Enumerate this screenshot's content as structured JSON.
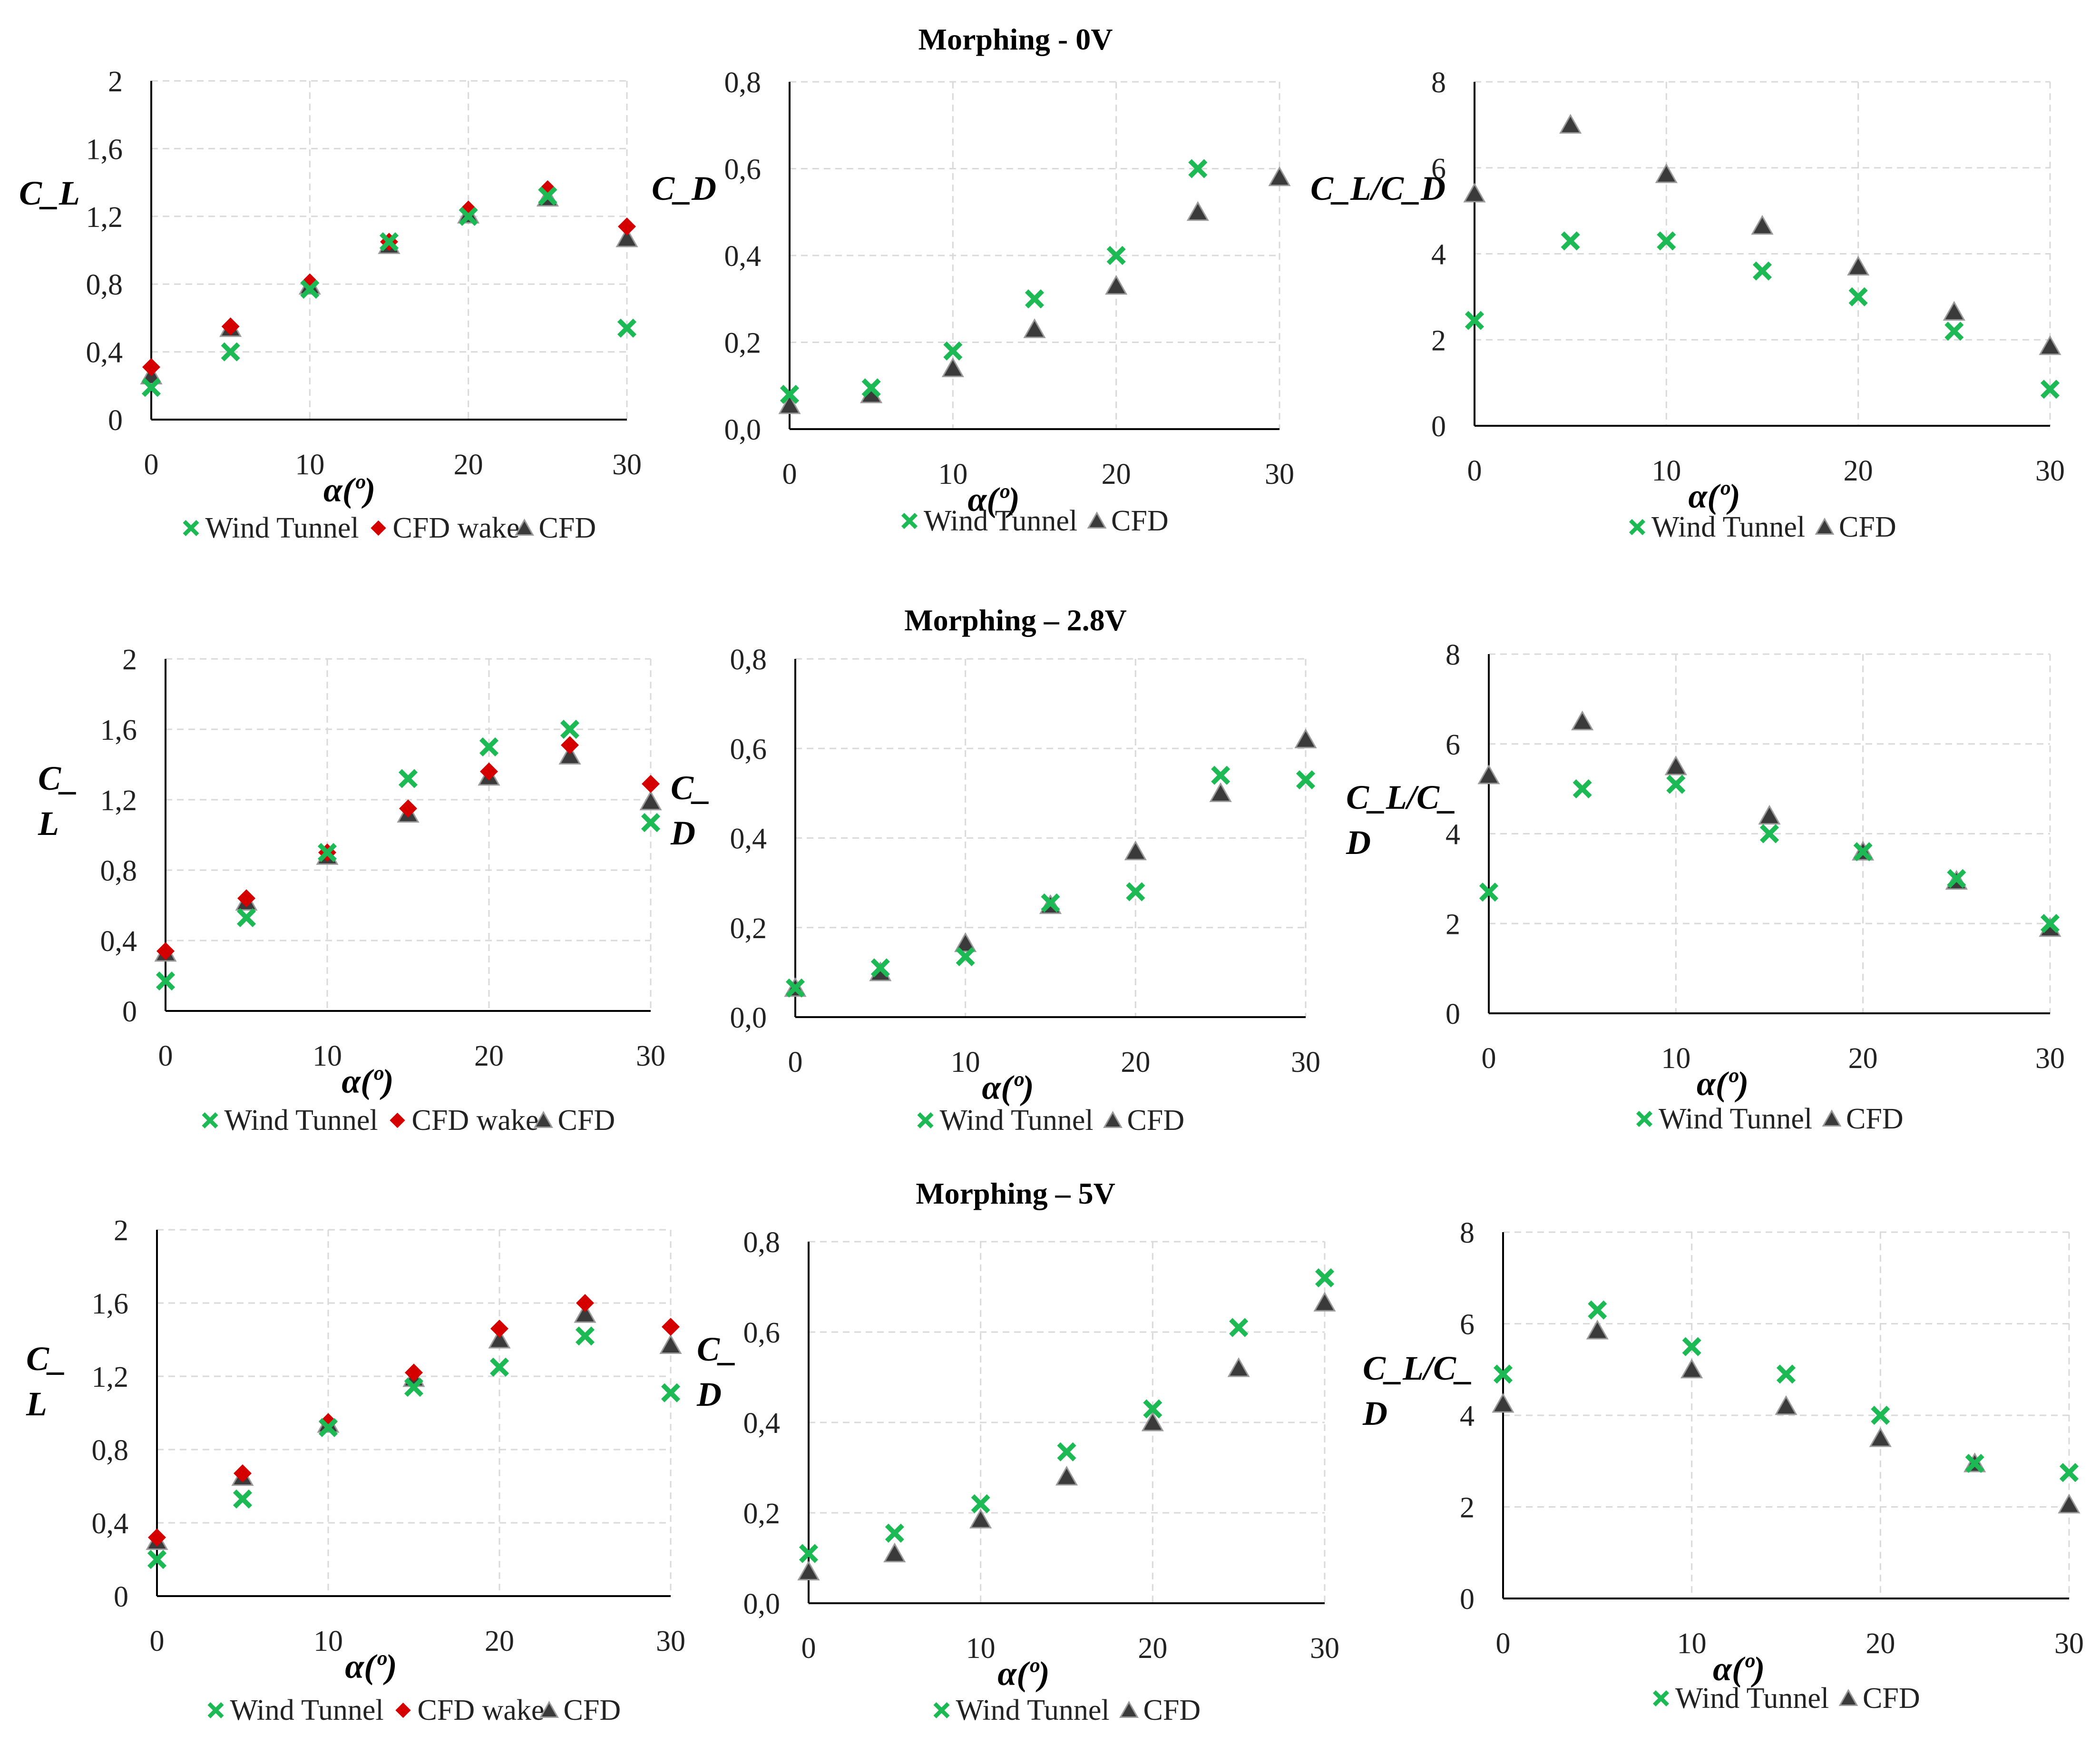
{
  "figure": {
    "row_titles": [
      "Morphing - 0V",
      "Morphing – 2.8V",
      "Morphing – 5V"
    ]
  },
  "colors": {
    "wind_tunnel": "#1db954",
    "cfd_wake": "#d40000",
    "cfd": "#3a3a3a",
    "grid": "#d9d9d9",
    "axis": "#000000"
  },
  "chart_data": [
    {
      "id": "r0c0",
      "type": "scatter",
      "title": "Morphing - 0V",
      "xlabel": "α(º)",
      "ylabel": [
        "C_L"
      ],
      "xlim": [
        0,
        30
      ],
      "ylim": [
        0,
        2
      ],
      "xticks": [
        0,
        10,
        20,
        30
      ],
      "xtick_labels": [
        "0",
        "10",
        "20",
        "30"
      ],
      "yticks": [
        0,
        0.4,
        0.8,
        1.2,
        1.6,
        2
      ],
      "ytick_labels": [
        "0",
        "0,4",
        "0,8",
        "1,2",
        "1,6",
        "2"
      ],
      "x": [
        0,
        5,
        10,
        15,
        20,
        25,
        30
      ],
      "series": [
        {
          "name": "Wind Tunnel",
          "marker": "x",
          "values": [
            0.19,
            0.4,
            0.77,
            1.05,
            1.2,
            1.32,
            0.54
          ]
        },
        {
          "name": "CFD wake",
          "marker": "diamond",
          "values": [
            0.31,
            0.55,
            0.81,
            1.05,
            1.24,
            1.36,
            1.14
          ]
        },
        {
          "name": "CFD",
          "marker": "triangle",
          "values": [
            0.26,
            0.54,
            0.79,
            1.03,
            1.21,
            1.31,
            1.07
          ]
        }
      ],
      "legend": [
        "Wind Tunnel",
        "CFD wake",
        "CFD"
      ]
    },
    {
      "id": "r0c1",
      "type": "scatter",
      "title": "",
      "xlabel": "α(º)",
      "ylabel": [
        "C_D"
      ],
      "xlim": [
        0,
        30
      ],
      "ylim": [
        0,
        0.8
      ],
      "xticks": [
        0,
        10,
        20,
        30
      ],
      "xtick_labels": [
        "0",
        "10",
        "20",
        "30"
      ],
      "yticks": [
        0,
        0.2,
        0.4,
        0.6,
        0.8
      ],
      "ytick_labels": [
        "0,0",
        "0,2",
        "0,4",
        "0,6",
        "0,8"
      ],
      "x": [
        0,
        5,
        10,
        15,
        20,
        25,
        30
      ],
      "series": [
        {
          "name": "Wind Tunnel",
          "marker": "x",
          "values": [
            0.08,
            0.095,
            0.18,
            0.3,
            0.4,
            0.6,
            null
          ]
        },
        {
          "name": "CFD",
          "marker": "triangle",
          "values": [
            0.055,
            0.08,
            0.14,
            0.23,
            0.33,
            0.5,
            0.58
          ]
        }
      ],
      "legend": [
        "Wind Tunnel",
        "CFD"
      ]
    },
    {
      "id": "r0c2",
      "type": "scatter",
      "title": "",
      "xlabel": "α(º)",
      "ylabel": [
        "C_L/C_D"
      ],
      "xlim": [
        0,
        30
      ],
      "ylim": [
        0,
        8
      ],
      "xticks": [
        0,
        10,
        20,
        30
      ],
      "xtick_labels": [
        "0",
        "10",
        "20",
        "30"
      ],
      "yticks": [
        0,
        2,
        4,
        6,
        8
      ],
      "ytick_labels": [
        "0",
        "2",
        "4",
        "6",
        "8"
      ],
      "x": [
        0,
        5,
        10,
        15,
        20,
        25,
        30
      ],
      "series": [
        {
          "name": "Wind Tunnel",
          "marker": "x",
          "values": [
            2.45,
            4.3,
            4.3,
            3.6,
            3.0,
            2.2,
            0.85
          ]
        },
        {
          "name": "CFD",
          "marker": "triangle",
          "values": [
            5.4,
            7.0,
            5.85,
            4.65,
            3.7,
            2.65,
            1.85
          ]
        }
      ],
      "legend": [
        "Wind Tunnel",
        "CFD"
      ]
    },
    {
      "id": "r1c0",
      "type": "scatter",
      "title": "Morphing – 2.8V",
      "xlabel": "α(º)",
      "ylabel": [
        "C_",
        "L"
      ],
      "xlim": [
        0,
        30
      ],
      "ylim": [
        0,
        2
      ],
      "xticks": [
        0,
        10,
        20,
        30
      ],
      "xtick_labels": [
        "0",
        "10",
        "20",
        "30"
      ],
      "yticks": [
        0,
        0.4,
        0.8,
        1.2,
        1.6,
        2
      ],
      "ytick_labels": [
        "0",
        "0,4",
        "0,8",
        "1,2",
        "1,6",
        "2"
      ],
      "x": [
        0,
        5,
        10,
        15,
        20,
        25,
        30
      ],
      "series": [
        {
          "name": "Wind Tunnel",
          "marker": "x",
          "values": [
            0.17,
            0.53,
            0.9,
            1.32,
            1.5,
            1.6,
            1.07
          ]
        },
        {
          "name": "CFD wake",
          "marker": "diamond",
          "values": [
            0.34,
            0.64,
            0.9,
            1.15,
            1.36,
            1.51,
            1.29
          ]
        },
        {
          "name": "CFD",
          "marker": "triangle",
          "values": [
            0.33,
            0.62,
            0.88,
            1.12,
            1.33,
            1.45,
            1.19
          ]
        }
      ],
      "legend": [
        "Wind Tunnel",
        "CFD wake",
        "CFD"
      ]
    },
    {
      "id": "r1c1",
      "type": "scatter",
      "title": "",
      "xlabel": "α(º)",
      "ylabel": [
        "C_",
        "D"
      ],
      "xlim": [
        0,
        30
      ],
      "ylim": [
        0,
        0.8
      ],
      "xticks": [
        0,
        10,
        20,
        30
      ],
      "xtick_labels": [
        "0",
        "10",
        "20",
        "30"
      ],
      "yticks": [
        0,
        0.2,
        0.4,
        0.6,
        0.8
      ],
      "ytick_labels": [
        "0,0",
        "0,2",
        "0,4",
        "0,6",
        "0,8"
      ],
      "x": [
        0,
        5,
        10,
        15,
        20,
        25,
        30
      ],
      "series": [
        {
          "name": "Wind Tunnel",
          "marker": "x",
          "values": [
            0.065,
            0.11,
            0.135,
            0.255,
            0.28,
            0.54,
            0.53
          ]
        },
        {
          "name": "CFD",
          "marker": "triangle",
          "values": [
            0.065,
            0.1,
            0.165,
            0.25,
            0.37,
            0.5,
            0.62
          ]
        }
      ],
      "legend": [
        "Wind Tunnel",
        "CFD"
      ]
    },
    {
      "id": "r1c2",
      "type": "scatter",
      "title": "",
      "xlabel": "α(º)",
      "ylabel": [
        "C_L/C_",
        "D"
      ],
      "xlim": [
        0,
        30
      ],
      "ylim": [
        0,
        8
      ],
      "xticks": [
        0,
        10,
        20,
        30
      ],
      "xtick_labels": [
        "0",
        "10",
        "20",
        "30"
      ],
      "yticks": [
        0,
        2,
        4,
        6,
        8
      ],
      "ytick_labels": [
        "0",
        "2",
        "4",
        "6",
        "8"
      ],
      "x": [
        0,
        5,
        10,
        15,
        20,
        25,
        30
      ],
      "series": [
        {
          "name": "Wind Tunnel",
          "marker": "x",
          "values": [
            2.7,
            5.0,
            5.1,
            4.0,
            3.6,
            3.0,
            2.0
          ]
        },
        {
          "name": "CFD",
          "marker": "triangle",
          "values": [
            5.3,
            6.5,
            5.5,
            4.4,
            3.6,
            2.95,
            1.9
          ]
        }
      ],
      "legend": [
        "Wind Tunnel",
        "CFD"
      ]
    },
    {
      "id": "r2c0",
      "type": "scatter",
      "title": "Morphing – 5V",
      "xlabel": "α(º)",
      "ylabel": [
        "C_",
        "L"
      ],
      "xlim": [
        0,
        30
      ],
      "ylim": [
        0,
        2
      ],
      "xticks": [
        0,
        10,
        20,
        30
      ],
      "xtick_labels": [
        "0",
        "10",
        "20",
        "30"
      ],
      "yticks": [
        0,
        0.4,
        0.8,
        1.2,
        1.6,
        2
      ],
      "ytick_labels": [
        "0",
        "0,4",
        "0,8",
        "1,2",
        "1,6",
        "2"
      ],
      "x": [
        0,
        5,
        10,
        15,
        20,
        25,
        30
      ],
      "series": [
        {
          "name": "Wind Tunnel",
          "marker": "x",
          "values": [
            0.2,
            0.53,
            0.92,
            1.14,
            1.25,
            1.42,
            1.11
          ]
        },
        {
          "name": "CFD wake",
          "marker": "diamond",
          "values": [
            0.32,
            0.67,
            0.95,
            1.22,
            1.46,
            1.6,
            1.47
          ]
        },
        {
          "name": "CFD",
          "marker": "triangle",
          "values": [
            0.3,
            0.65,
            0.94,
            1.19,
            1.4,
            1.54,
            1.37
          ]
        }
      ],
      "legend": [
        "Wind Tunnel",
        "CFD wake",
        "CFD"
      ]
    },
    {
      "id": "r2c1",
      "type": "scatter",
      "title": "",
      "xlabel": "α(º)",
      "ylabel": [
        "C_",
        "D"
      ],
      "xlim": [
        0,
        30
      ],
      "ylim": [
        0,
        0.8
      ],
      "xticks": [
        0,
        10,
        20,
        30
      ],
      "xtick_labels": [
        "0",
        "10",
        "20",
        "30"
      ],
      "yticks": [
        0,
        0.2,
        0.4,
        0.6,
        0.8
      ],
      "ytick_labels": [
        "0,0",
        "0,2",
        "0,4",
        "0,6",
        "0,8"
      ],
      "x": [
        0,
        5,
        10,
        15,
        20,
        25,
        30
      ],
      "series": [
        {
          "name": "Wind Tunnel",
          "marker": "x",
          "values": [
            0.11,
            0.155,
            0.22,
            0.335,
            0.43,
            0.61,
            0.72
          ]
        },
        {
          "name": "CFD",
          "marker": "triangle",
          "values": [
            0.07,
            0.11,
            0.185,
            0.28,
            0.4,
            0.52,
            0.665
          ]
        }
      ],
      "legend": [
        "Wind Tunnel",
        "CFD"
      ]
    },
    {
      "id": "r2c2",
      "type": "scatter",
      "title": "",
      "xlabel": "α(º)",
      "ylabel": [
        "C_L/C_",
        "D"
      ],
      "xlim": [
        0,
        30
      ],
      "ylim": [
        0,
        8
      ],
      "xticks": [
        0,
        10,
        20,
        30
      ],
      "xtick_labels": [
        "0",
        "10",
        "20",
        "30"
      ],
      "yticks": [
        0,
        2,
        4,
        6,
        8
      ],
      "ytick_labels": [
        "0",
        "2",
        "4",
        "6",
        "8"
      ],
      "x": [
        0,
        5,
        10,
        15,
        20,
        25,
        30
      ],
      "series": [
        {
          "name": "Wind Tunnel",
          "marker": "x",
          "values": [
            4.9,
            6.3,
            5.5,
            4.9,
            4.0,
            2.95,
            2.75
          ]
        },
        {
          "name": "CFD",
          "marker": "triangle",
          "values": [
            4.25,
            5.85,
            5.0,
            4.2,
            3.5,
            2.95,
            2.05
          ]
        }
      ],
      "legend": [
        "Wind Tunnel",
        "CFD"
      ]
    }
  ]
}
